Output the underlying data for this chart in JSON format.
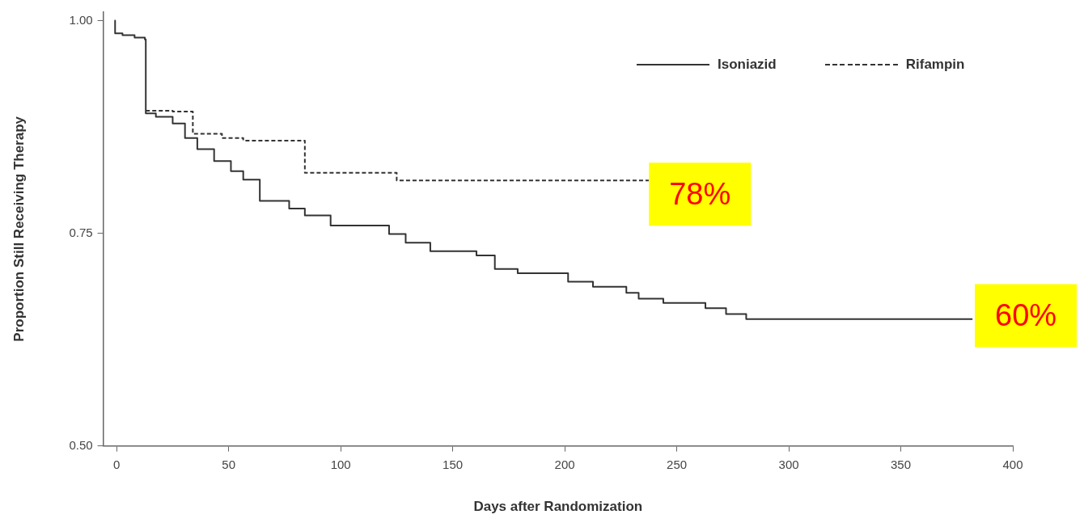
{
  "chart_data": {
    "type": "step",
    "xlabel": "Days after Randomization",
    "ylabel": "Proportion Still Receiving Therapy",
    "xlim": [
      -6,
      400
    ],
    "ylim": [
      0.5,
      1.01
    ],
    "xticks": [
      0,
      50,
      100,
      150,
      200,
      250,
      300,
      350,
      400
    ],
    "yticks": [
      {
        "value": 0.5,
        "label": "0.50"
      },
      {
        "value": 0.75,
        "label": "0.75"
      },
      {
        "value": 1.0,
        "label": "1.00"
      }
    ],
    "legend": "top right",
    "series": [
      {
        "name": "Isoniazid",
        "color": "#333333",
        "line_style": "solid",
        "x": [
          -1,
          -0.7,
          2.6,
          8,
          12.6,
          13,
          17.5,
          25,
          30.5,
          36,
          43.5,
          51,
          56.5,
          63.9,
          77,
          84,
          95.5,
          115,
          121.6,
          129,
          140,
          160.6,
          168.8,
          179,
          194,
          201.5,
          212.6,
          227.5,
          233,
          244,
          262.8,
          272,
          281,
          382
        ],
        "values": [
          1.0,
          0.985,
          0.983,
          0.98,
          0.978,
          0.891,
          0.887,
          0.879,
          0.862,
          0.849,
          0.835,
          0.823,
          0.813,
          0.788,
          0.779,
          0.771,
          0.759,
          0.759,
          0.749,
          0.739,
          0.729,
          0.724,
          0.708,
          0.703,
          0.703,
          0.693,
          0.687,
          0.68,
          0.673,
          0.668,
          0.662,
          0.655,
          0.649,
          0.649
        ]
      },
      {
        "name": "Rifampin",
        "color": "#333333",
        "line_style": "dashed",
        "x": [
          13,
          25,
          34,
          47,
          56.5,
          84,
          120,
          125,
          237.5
        ],
        "values": [
          0.894,
          0.893,
          0.867,
          0.862,
          0.859,
          0.821,
          0.821,
          0.812,
          0.812
        ]
      }
    ],
    "annotations": [
      "78%",
      "60%"
    ]
  }
}
